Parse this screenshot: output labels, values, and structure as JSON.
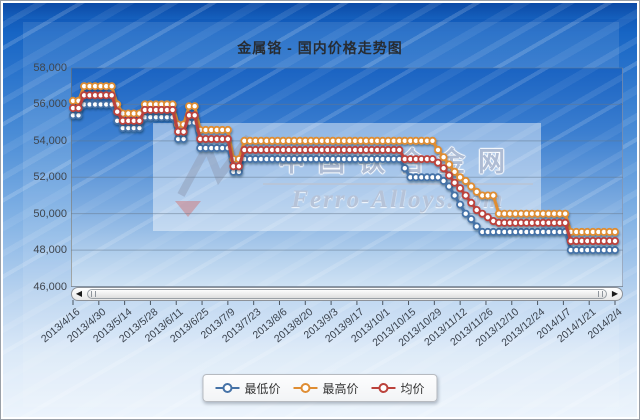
{
  "title": "金属铬 - 国内价格走势图",
  "watermark": {
    "cn": "中国铁合金网",
    "en": "Ferro-Alloys.com"
  },
  "colors": {
    "min": "#4572A7",
    "max": "#DF8D33",
    "avg": "#BB423C",
    "grid": "#66778c",
    "axis_text": "#3d444d"
  },
  "scrollbar": {
    "left_arrow": "◀",
    "right_arrow": "▶"
  },
  "legend": [
    {
      "label": "最低价",
      "series": "min",
      "color": "#4572A7"
    },
    {
      "label": "最高价",
      "series": "max",
      "color": "#DF8D33"
    },
    {
      "label": "均价",
      "series": "avg",
      "color": "#BB423C"
    }
  ],
  "y_axis": {
    "labels": [
      "58,000",
      "56,000",
      "54,000",
      "52,000",
      "50,000",
      "48,000",
      "46,000"
    ],
    "min": 46000,
    "max": 58000,
    "step": 2000
  },
  "x_axis": {
    "tick_labels": [
      "2013/4/16",
      "2013/4/30",
      "2013/5/14",
      "2013/5/28",
      "2013/6/11",
      "2013/6/25",
      "2013/7/9",
      "2013/7/23",
      "2013/8/6",
      "2013/8/20",
      "2013/9/3",
      "2013/9/17",
      "2013/10/1",
      "2013/10/15",
      "2013/10/29",
      "2013/11/12",
      "2013/11/26",
      "2013/12/10",
      "2013/12/24",
      "2014/1/7",
      "2014/1/21",
      "2014/2/4"
    ]
  },
  "chart_data": {
    "type": "line",
    "title": "金属铬 - 国内价格走势图",
    "ylim": [
      46000,
      58000
    ],
    "grid": true,
    "legend_position": "bottom",
    "x": [
      "2013/4/16",
      "2013/4/19",
      "2013/4/22",
      "2013/4/25",
      "2013/4/28",
      "2013/5/1",
      "2013/5/4",
      "2013/5/7",
      "2013/5/10",
      "2013/5/13",
      "2013/5/16",
      "2013/5/19",
      "2013/5/22",
      "2013/5/25",
      "2013/5/28",
      "2013/5/31",
      "2013/6/3",
      "2013/6/6",
      "2013/6/9",
      "2013/6/12",
      "2013/6/15",
      "2013/6/18",
      "2013/6/21",
      "2013/6/24",
      "2013/6/27",
      "2013/6/30",
      "2013/7/3",
      "2013/7/6",
      "2013/7/9",
      "2013/7/12",
      "2013/7/15",
      "2013/7/18",
      "2013/7/21",
      "2013/7/24",
      "2013/7/27",
      "2013/7/30",
      "2013/8/2",
      "2013/8/5",
      "2013/8/8",
      "2013/8/11",
      "2013/8/14",
      "2013/8/17",
      "2013/8/20",
      "2013/8/23",
      "2013/8/26",
      "2013/8/29",
      "2013/9/1",
      "2013/9/4",
      "2013/9/7",
      "2013/9/10",
      "2013/9/13",
      "2013/9/16",
      "2013/9/19",
      "2013/9/22",
      "2013/9/25",
      "2013/9/28",
      "2013/10/1",
      "2013/10/4",
      "2013/10/7",
      "2013/10/10",
      "2013/10/13",
      "2013/10/16",
      "2013/10/19",
      "2013/10/22",
      "2013/10/25",
      "2013/10/28",
      "2013/10/31",
      "2013/11/3",
      "2013/11/6",
      "2013/11/9",
      "2013/11/12",
      "2013/11/15",
      "2013/11/18",
      "2013/11/21",
      "2013/11/24",
      "2013/11/27",
      "2013/11/30",
      "2013/12/3",
      "2013/12/6",
      "2013/12/9",
      "2013/12/12",
      "2013/12/15",
      "2013/12/18",
      "2013/12/21",
      "2013/12/24",
      "2013/12/27",
      "2013/12/30",
      "2014/1/2",
      "2014/1/5",
      "2014/1/8",
      "2014/1/11",
      "2014/1/14",
      "2014/1/17",
      "2014/1/20",
      "2014/1/23",
      "2014/1/26",
      "2014/1/29",
      "2014/2/1",
      "2014/2/4"
    ],
    "series": [
      {
        "name": "最低价",
        "key": "min",
        "color": "#4572A7",
        "values": [
          55400,
          55400,
          56000,
          56000,
          56000,
          56000,
          56000,
          56000,
          55100,
          54700,
          54700,
          54700,
          54700,
          55300,
          55300,
          55300,
          55300,
          55300,
          55300,
          54100,
          54100,
          55000,
          55000,
          53600,
          53600,
          53600,
          53600,
          53600,
          53600,
          52300,
          52300,
          53000,
          53000,
          53000,
          53000,
          53000,
          53000,
          53000,
          53000,
          53000,
          53000,
          53000,
          53000,
          53000,
          53000,
          53000,
          53000,
          53000,
          53000,
          53000,
          53000,
          53000,
          53000,
          53000,
          53000,
          53000,
          53000,
          53000,
          53000,
          53000,
          52500,
          52000,
          52000,
          52000,
          52000,
          52000,
          52000,
          51800,
          51500,
          51000,
          50500,
          50000,
          49700,
          49300,
          49000,
          49000,
          49000,
          49000,
          49000,
          49000,
          49000,
          49000,
          49000,
          49000,
          49000,
          49000,
          49000,
          49000,
          49000,
          49000,
          48000,
          48000,
          48000,
          48000,
          48000,
          48000,
          48000,
          48000,
          48000
        ]
      },
      {
        "name": "最高价",
        "key": "max",
        "color": "#DF8D33",
        "values": [
          56200,
          56200,
          57000,
          57000,
          57000,
          57000,
          57000,
          57000,
          56000,
          55500,
          55500,
          55500,
          55500,
          56000,
          56000,
          56000,
          56000,
          56000,
          56000,
          54900,
          54900,
          55900,
          55900,
          54600,
          54600,
          54600,
          54600,
          54600,
          54600,
          53000,
          53000,
          54000,
          54000,
          54000,
          54000,
          54000,
          54000,
          54000,
          54000,
          54000,
          54000,
          54000,
          54000,
          54000,
          54000,
          54000,
          54000,
          54000,
          54000,
          54000,
          54000,
          54000,
          54000,
          54000,
          54000,
          54000,
          54000,
          54000,
          54000,
          54000,
          54000,
          54000,
          54000,
          54000,
          54000,
          54000,
          53500,
          53100,
          52700,
          52300,
          52000,
          51800,
          51500,
          51200,
          51000,
          51000,
          51000,
          50000,
          50000,
          50000,
          50000,
          50000,
          50000,
          50000,
          50000,
          50000,
          50000,
          50000,
          50000,
          50000,
          49000,
          49000,
          49000,
          49000,
          49000,
          49000,
          49000,
          49000,
          49000
        ]
      },
      {
        "name": "均价",
        "key": "avg",
        "color": "#BB423C",
        "values": [
          55800,
          55800,
          56500,
          56500,
          56500,
          56500,
          56500,
          56500,
          55600,
          55100,
          55100,
          55100,
          55100,
          55700,
          55700,
          55700,
          55700,
          55700,
          55700,
          54500,
          54500,
          55400,
          55400,
          54100,
          54100,
          54100,
          54100,
          54100,
          54100,
          52600,
          52600,
          53500,
          53500,
          53500,
          53500,
          53500,
          53500,
          53500,
          53500,
          53500,
          53500,
          53500,
          53500,
          53500,
          53500,
          53500,
          53500,
          53500,
          53500,
          53500,
          53500,
          53500,
          53500,
          53500,
          53500,
          53500,
          53500,
          53500,
          53500,
          53500,
          53000,
          53000,
          53000,
          53000,
          53000,
          53000,
          52800,
          52500,
          52100,
          51700,
          51400,
          51000,
          50600,
          50200,
          50000,
          49800,
          49600,
          49500,
          49500,
          49500,
          49500,
          49500,
          49500,
          49500,
          49500,
          49500,
          49500,
          49500,
          49500,
          49500,
          48500,
          48500,
          48500,
          48500,
          48500,
          48500,
          48500,
          48500,
          48500
        ]
      }
    ]
  }
}
